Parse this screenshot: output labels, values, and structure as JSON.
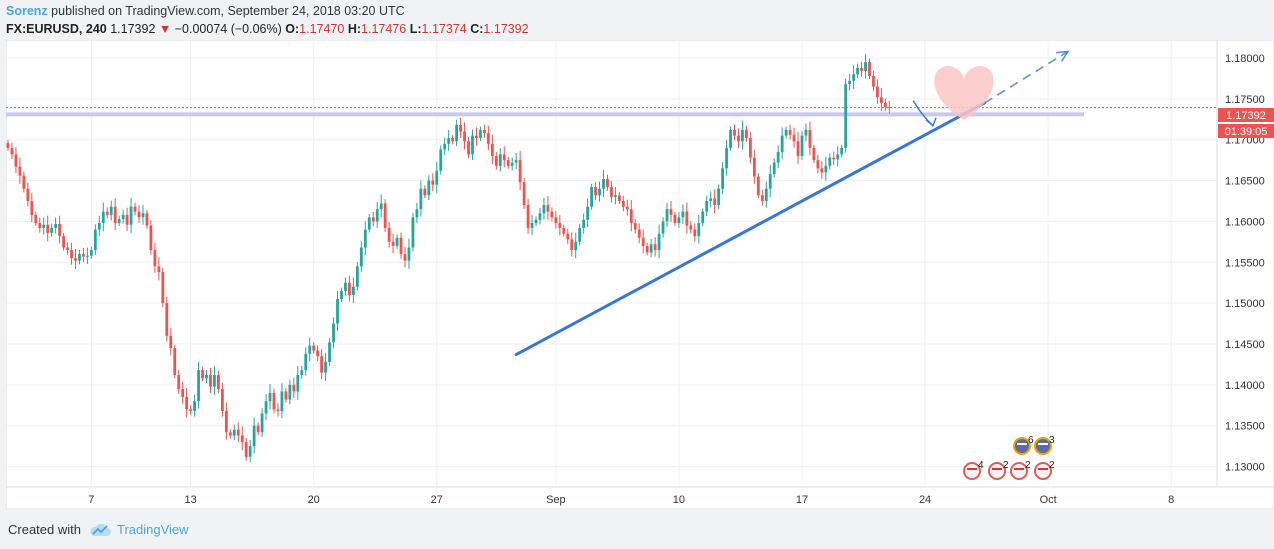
{
  "header": {
    "author": "Sorenz",
    "published_text": "published on TradingView.com, September 24, 2018 03:20 UTC"
  },
  "quote": {
    "symbol": "FX:EURUSD, 240",
    "last": "1.17392",
    "change_arrow": "▼",
    "change": "−0.00074 (−0.06%)",
    "o_label": "O:",
    "o_value": "1.17470",
    "h_label": "H:",
    "h_value": "1.17476",
    "l_label": "L:",
    "l_value": "1.17374",
    "c_label": "C:",
    "c_value": "1.17392"
  },
  "price_tags": {
    "last_price": "1.17392",
    "countdown": "01:39:05"
  },
  "events": [
    {
      "count": "6",
      "row": "top"
    },
    {
      "count": "3",
      "row": "top"
    },
    {
      "count": "4",
      "row": "bottom"
    },
    {
      "count": "2",
      "row": "bottom"
    },
    {
      "count": "2",
      "row": "bottom"
    },
    {
      "count": "2",
      "row": "bottom"
    }
  ],
  "footer": {
    "created_with": "Created with",
    "brand": "TradingView"
  },
  "colors": {
    "up": "#26a69a",
    "down": "#ef5350",
    "trendline": "#3a77d2",
    "support": "#c8c9f2",
    "heart": "#fbc6c6"
  },
  "chart_data": {
    "type": "candlestick",
    "symbol": "FX:EURUSD",
    "interval": "240",
    "y_ticks": [
      "1.13000",
      "1.13500",
      "1.14000",
      "1.14500",
      "1.15000",
      "1.15500",
      "1.16000",
      "1.16500",
      "1.17000",
      "1.17500",
      "1.18000"
    ],
    "ylim": [
      1.1275,
      1.1822
    ],
    "x_ticks": [
      {
        "label": "7",
        "idx": 21
      },
      {
        "label": "13",
        "idx": 46
      },
      {
        "label": "20",
        "idx": 77
      },
      {
        "label": "27",
        "idx": 108
      },
      {
        "label": "Sep",
        "idx": 138
      },
      {
        "label": "10",
        "idx": 169
      },
      {
        "label": "17",
        "idx": 200
      },
      {
        "label": "24",
        "idx": 231
      },
      {
        "label": "Oct",
        "idx": 262
      },
      {
        "label": "8",
        "idx": 293
      }
    ],
    "support_level": 1.1731,
    "last_price": 1.17392,
    "trendline": {
      "from": {
        "idx": 128,
        "price": 1.1437
      },
      "to": {
        "idx": 246,
        "price": 1.1745
      }
    },
    "projection": {
      "from": {
        "idx": 246,
        "price": 1.1745
      },
      "to": {
        "idx": 267,
        "price": 1.1808
      }
    },
    "forecast_arrow": {
      "from": {
        "idx": 228,
        "price": 1.1748
      },
      "to": {
        "idx": 233,
        "price": 1.1717
      }
    },
    "closes": [
      1.169,
      1.1682,
      1.1667,
      1.1656,
      1.164,
      1.1625,
      1.1608,
      1.1598,
      1.1592,
      1.1596,
      1.1586,
      1.1592,
      1.1597,
      1.1582,
      1.1568,
      1.1565,
      1.1555,
      1.1552,
      1.156,
      1.1557,
      1.1558,
      1.1565,
      1.159,
      1.1598,
      1.1612,
      1.1608,
      1.1618,
      1.1598,
      1.1603,
      1.1608,
      1.1596,
      1.1618,
      1.1612,
      1.1605,
      1.161,
      1.1595,
      1.1565,
      1.1545,
      1.1538,
      1.15,
      1.146,
      1.1445,
      1.1412,
      1.1395,
      1.1385,
      1.137,
      1.1368,
      1.138,
      1.1418,
      1.1408,
      1.1412,
      1.1398,
      1.1412,
      1.1395,
      1.1368,
      1.1342,
      1.1338,
      1.1345,
      1.1338,
      1.133,
      1.1312,
      1.1325,
      1.135,
      1.1342,
      1.1365,
      1.138,
      1.139,
      1.137,
      1.1368,
      1.1392,
      1.1382,
      1.14,
      1.1392,
      1.1412,
      1.1418,
      1.1438,
      1.1448,
      1.1442,
      1.1435,
      1.1415,
      1.1428,
      1.1452,
      1.1475,
      1.1505,
      1.1515,
      1.1525,
      1.151,
      1.152,
      1.1545,
      1.1568,
      1.159,
      1.1605,
      1.16,
      1.1615,
      1.1622,
      1.1592,
      1.1575,
      1.157,
      1.158,
      1.156,
      1.1552,
      1.1568,
      1.1605,
      1.1615,
      1.164,
      1.1632,
      1.165,
      1.1645,
      1.1662,
      1.1688,
      1.1695,
      1.1702,
      1.1698,
      1.1718,
      1.171,
      1.1698,
      1.1682,
      1.1705,
      1.1702,
      1.1712,
      1.1708,
      1.1695,
      1.168,
      1.1668,
      1.1682,
      1.1675,
      1.1668,
      1.1672,
      1.1675,
      1.1648,
      1.162,
      1.1592,
      1.1598,
      1.1602,
      1.161,
      1.162,
      1.1612,
      1.1605,
      1.1598,
      1.1592,
      1.1585,
      1.1578,
      1.1565,
      1.1575,
      1.1592,
      1.1602,
      1.1618,
      1.1642,
      1.1632,
      1.164,
      1.1652,
      1.1642,
      1.163,
      1.1632,
      1.1625,
      1.1618,
      1.1615,
      1.1598,
      1.159,
      1.158,
      1.157,
      1.1562,
      1.1572,
      1.1565,
      1.1585,
      1.16,
      1.1615,
      1.1608,
      1.1598,
      1.1605,
      1.1612,
      1.1595,
      1.159,
      1.1582,
      1.1598,
      1.1612,
      1.1625,
      1.1628,
      1.162,
      1.164,
      1.1665,
      1.169,
      1.1712,
      1.1705,
      1.1698,
      1.1712,
      1.1702,
      1.1678,
      1.1655,
      1.1632,
      1.1625,
      1.164,
      1.1658,
      1.1672,
      1.1685,
      1.1705,
      1.1712,
      1.1706,
      1.1698,
      1.168,
      1.1705,
      1.1712,
      1.169,
      1.1675,
      1.1665,
      1.166,
      1.1668,
      1.1678,
      1.1676,
      1.1682,
      1.169,
      1.1768,
      1.1772,
      1.178,
      1.1788,
      1.1784,
      1.1795,
      1.1778,
      1.1765,
      1.1752,
      1.1745,
      1.174,
      1.17392
    ]
  }
}
